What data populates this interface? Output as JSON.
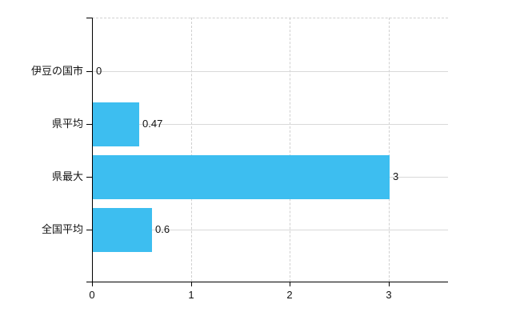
{
  "chart_data": {
    "type": "bar",
    "orientation": "horizontal",
    "title": "",
    "xlabel": "",
    "ylabel": "",
    "categories": [
      "伊豆の国市",
      "県平均",
      "県最大",
      "全国平均"
    ],
    "values": [
      0,
      0.47,
      3,
      0.6
    ],
    "value_labels": [
      "0",
      "0.47",
      "3",
      "0.6"
    ],
    "xlim": [
      0,
      3.6
    ],
    "xticks": [
      0,
      1,
      2,
      3
    ],
    "grid": true,
    "legend": false,
    "bar_color": "#3DBEF0",
    "axis_color": "#000000",
    "h_gridline_color": "#d9d9d9",
    "v_gridline_color": "#cfcfcf",
    "text_color": "#111111",
    "background_color": "#ffffff"
  }
}
